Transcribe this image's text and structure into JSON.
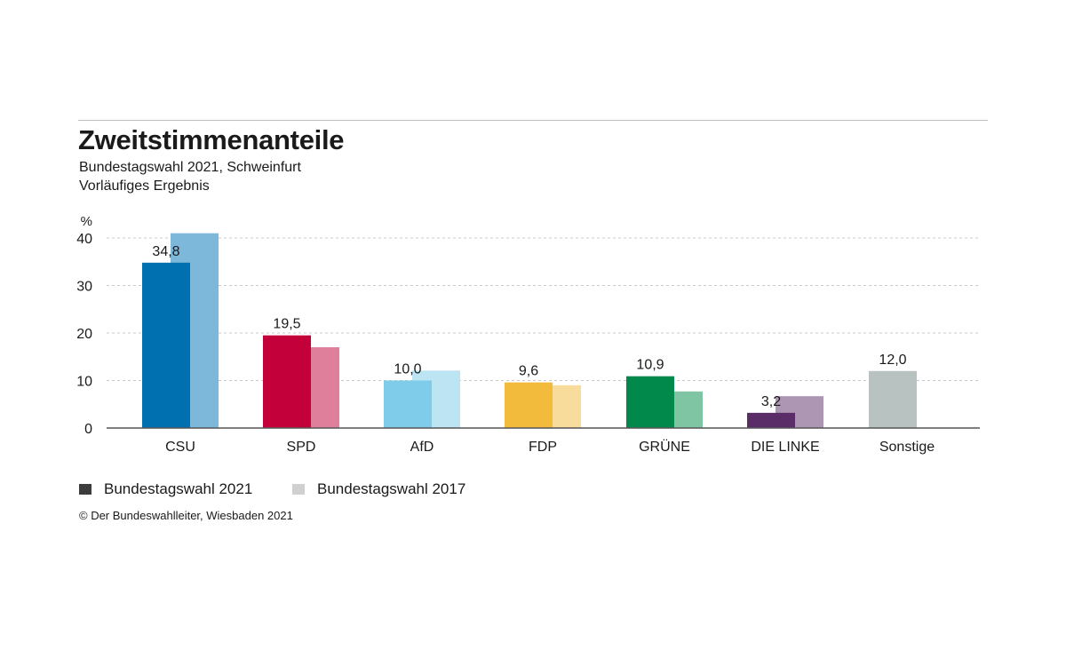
{
  "header": {
    "title": "Zweitstimmenanteile",
    "subtitle": "Bundestagswahl 2021, Schweinfurt",
    "subtitle2": "Vorläufiges Ergebnis"
  },
  "chart_data": {
    "type": "bar",
    "title": "Zweitstimmenanteile",
    "ylabel": "%",
    "ylim": [
      0,
      40
    ],
    "yticks": [
      "0",
      "10",
      "20",
      "30",
      "40"
    ],
    "grid": true,
    "legend_position": "bottom-left",
    "categories": [
      "CSU",
      "SPD",
      "AfD",
      "FDP",
      "GRÜNE",
      "DIE LINKE",
      "Sonstige"
    ],
    "series": [
      {
        "name": "Bundestagswahl 2021",
        "values": [
          34.8,
          19.5,
          10.0,
          9.6,
          10.9,
          3.2,
          12.0
        ],
        "labels": [
          "34,8",
          "19,5",
          "10,0",
          "9,6",
          "10,9",
          "3,2",
          "12,0"
        ],
        "colors": [
          "#0070b0",
          "#c4003a",
          "#7ecbea",
          "#f2bb3b",
          "#00894a",
          "#5a2d69",
          "#b8c3c1"
        ]
      },
      {
        "name": "Bundestagswahl 2017",
        "values": [
          41.0,
          17.0,
          12.1,
          9.0,
          7.7,
          6.7,
          null
        ],
        "colors": [
          "#7db7d9",
          "#df7f9c",
          "#bce4f3",
          "#f7dc9c",
          "#7fc4a3",
          "#ac96b3",
          "#dbe1e0"
        ]
      }
    ],
    "legend_colors": [
      "#3c3c3c",
      "#d0d0d0"
    ]
  },
  "footer": {
    "source": "© Der Bundeswahlleiter, Wiesbaden 2021"
  }
}
